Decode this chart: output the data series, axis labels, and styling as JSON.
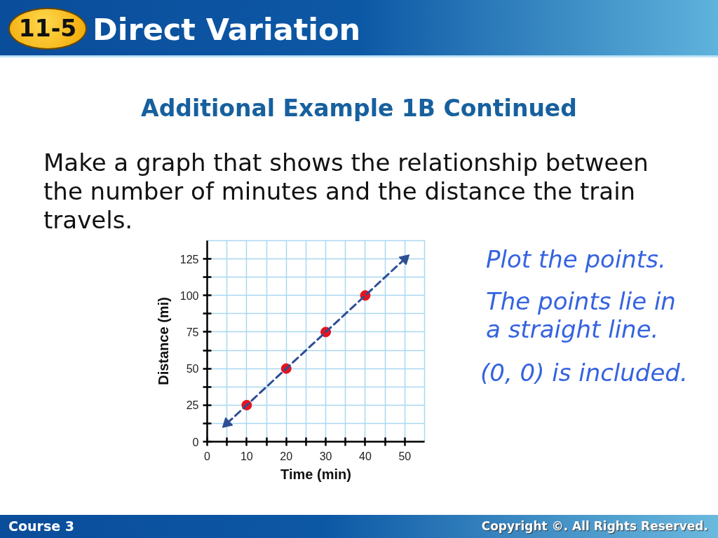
{
  "chart_data": {
    "type": "scatter",
    "title": "Direct Variation",
    "subtitle": "Additional Example 1B Continued",
    "xlabel": "Time (min)",
    "ylabel": "Distance (mi)",
    "annotations": [
      "11-5",
      "Make a graph that shows the relationship between the number of minutes and the distance the train travels.",
      "Plot the points.",
      "The points lie in a straight line.",
      "(0, 0) is included.",
      "Course 3",
      "Copyright ©. All Rights Reserved."
    ],
    "series": [
      {
        "color": "#e3141e",
        "marker": "circle",
        "x": [
          10,
          20,
          30,
          40
        ],
        "values": [
          25,
          50,
          75,
          100
        ]
      },
      {
        "type": "line",
        "color": "#2d4e95",
        "marker": "triangle",
        "line_style": "dashed",
        "x": [
          5,
          50
        ],
        "values": [
          12.5,
          125
        ]
      }
    ],
    "xlim": [
      0,
      55
    ],
    "ylim": [
      0,
      137.5
    ],
    "xticks": [
      0,
      {
        "value": 5,
        "label": null
      },
      10,
      {
        "value": 15,
        "label": null
      },
      20,
      {
        "value": 25,
        "label": null
      },
      30,
      {
        "value": 35,
        "label": null
      },
      40,
      {
        "value": 45,
        "label": null
      },
      50
    ],
    "yticks": [
      0,
      {
        "value": 12.5,
        "label": null
      },
      25,
      {
        "value": 37.5,
        "label": null
      },
      50,
      {
        "value": 62.5,
        "label": null
      },
      75,
      {
        "value": 87.5,
        "label": null
      },
      100,
      {
        "value": 112.5,
        "label": null
      },
      125
    ],
    "grid": true
  }
}
